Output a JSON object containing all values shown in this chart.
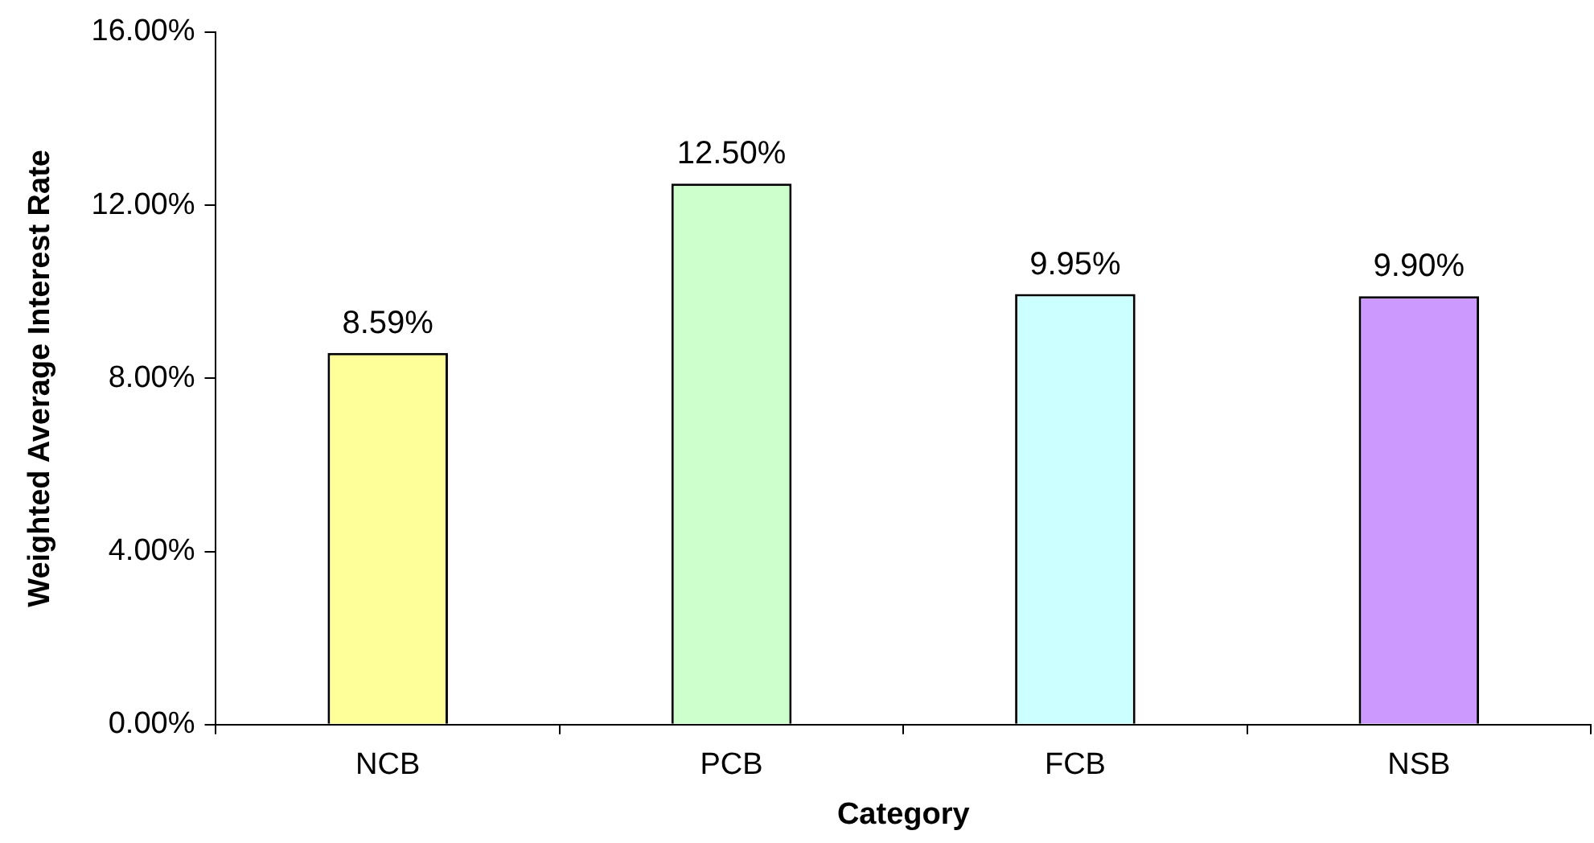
{
  "chart_data": {
    "type": "bar",
    "xlabel": "Category",
    "ylabel": "Weighted Average Interest Rate",
    "categories": [
      "NCB",
      "PCB",
      "FCB",
      "NSB"
    ],
    "values": [
      8.59,
      12.5,
      9.95,
      9.9
    ],
    "colors": [
      "#ffff99",
      "#ccffcc",
      "#ccffff",
      "#cc99ff"
    ],
    "value_labels": [
      "8.59%",
      "12.50%",
      "9.95%",
      "9.90%"
    ],
    "ylim": [
      0,
      16
    ],
    "yticks": [
      {
        "value": 0,
        "label": "0.00%"
      },
      {
        "value": 4,
        "label": "4.00%"
      },
      {
        "value": 8,
        "label": "8.00%"
      },
      {
        "value": 12,
        "label": "12.00%"
      },
      {
        "value": 16,
        "label": "16.00%"
      }
    ],
    "grid": false,
    "legend": false
  }
}
